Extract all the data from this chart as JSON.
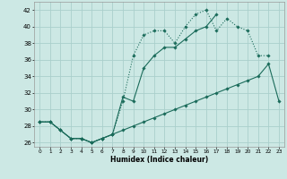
{
  "xlabel": "Humidex (Indice chaleur)",
  "background_color": "#cce8e4",
  "grid_color": "#aacfcc",
  "line_color": "#1a6b5a",
  "xlim": [
    -0.5,
    23.5
  ],
  "ylim": [
    25.5,
    43
  ],
  "yticks": [
    26,
    28,
    30,
    32,
    34,
    36,
    38,
    40,
    42
  ],
  "xticks": [
    0,
    1,
    2,
    3,
    4,
    5,
    6,
    7,
    8,
    9,
    10,
    11,
    12,
    13,
    14,
    15,
    16,
    17,
    18,
    19,
    20,
    21,
    22,
    23
  ],
  "series1_x": [
    0,
    1,
    2,
    3,
    4,
    5,
    6,
    7,
    8,
    9,
    10,
    11,
    12,
    13,
    14,
    15,
    16,
    17,
    18,
    19,
    20,
    21,
    22
  ],
  "series1_y": [
    28.5,
    28.5,
    27.5,
    26.5,
    26.5,
    26.0,
    26.5,
    27.0,
    31.0,
    36.5,
    39.0,
    39.5,
    39.5,
    38.0,
    40.0,
    41.5,
    42.0,
    39.5,
    41.0,
    40.0,
    39.5,
    36.5,
    36.5
  ],
  "series2_x": [
    0,
    1,
    2,
    3,
    4,
    5,
    6,
    7,
    8,
    9,
    10,
    11,
    12,
    13,
    14,
    15,
    16,
    17,
    18,
    19,
    20,
    21,
    22,
    23
  ],
  "series2_y": [
    28.5,
    28.5,
    27.5,
    26.5,
    26.5,
    26.0,
    26.5,
    27.0,
    31.5,
    31.0,
    35.0,
    36.5,
    37.5,
    37.5,
    38.5,
    39.5,
    40.0,
    41.5,
    null,
    null,
    null,
    null,
    null,
    null
  ],
  "series3_x": [
    0,
    1,
    2,
    3,
    4,
    5,
    6,
    7,
    8,
    9,
    10,
    11,
    12,
    13,
    14,
    15,
    16,
    17,
    18,
    19,
    20,
    21,
    22,
    23
  ],
  "series3_y": [
    28.5,
    28.5,
    27.5,
    26.5,
    26.5,
    26.0,
    26.5,
    27.0,
    27.5,
    28.0,
    28.5,
    29.0,
    29.5,
    30.0,
    30.5,
    31.0,
    31.5,
    32.0,
    32.5,
    33.0,
    33.5,
    34.0,
    35.5,
    31.0
  ]
}
